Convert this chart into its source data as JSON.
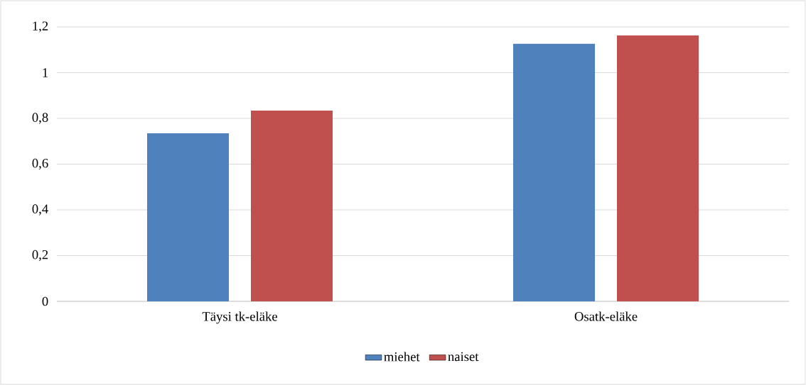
{
  "chart_data": {
    "type": "bar",
    "categories": [
      "Täysi tk-eläke",
      "Osatk-eläke"
    ],
    "series": [
      {
        "name": "miehet",
        "color": "#4f81bd",
        "values": [
          0.735,
          1.126
        ]
      },
      {
        "name": "naiset",
        "color": "#c0504d",
        "values": [
          0.834,
          1.163
        ]
      }
    ],
    "ylim": [
      0,
      1.2
    ],
    "yticks": [
      0,
      {
        "value": 0.2,
        "label": "0,2"
      },
      {
        "value": 0.4,
        "label": "0,4"
      },
      {
        "value": 0.6,
        "label": "0,6"
      },
      {
        "value": 0.8,
        "label": "0,8"
      },
      1,
      {
        "value": 1.2,
        "label": "1,2"
      }
    ],
    "grid": "y",
    "legend": "bottom"
  }
}
